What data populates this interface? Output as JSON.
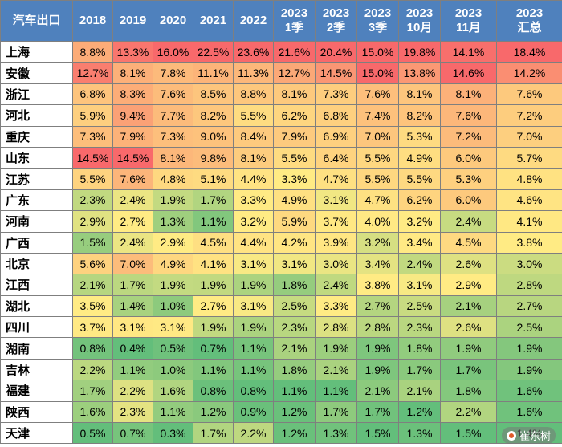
{
  "chart_data": {
    "type": "heatmap",
    "corner_label": "汽车出口",
    "columns": [
      [
        "2018"
      ],
      [
        "2019"
      ],
      [
        "2020"
      ],
      [
        "2021"
      ],
      [
        "2022"
      ],
      [
        "2023",
        "1季"
      ],
      [
        "2023",
        "2季"
      ],
      [
        "2023",
        "3季"
      ],
      [
        "2023",
        "10月"
      ],
      [
        "2023",
        "11月"
      ],
      [
        "2023",
        "汇总"
      ]
    ],
    "rows": [
      {
        "name": "上海",
        "values": [
          8.8,
          13.3,
          16.0,
          22.5,
          23.6,
          21.6,
          20.4,
          15.0,
          19.8,
          14.1,
          18.4
        ]
      },
      {
        "name": "安徽",
        "values": [
          12.7,
          8.1,
          7.8,
          11.1,
          11.3,
          12.7,
          14.5,
          15.0,
          13.8,
          14.6,
          14.2
        ]
      },
      {
        "name": "浙江",
        "values": [
          6.8,
          8.3,
          7.6,
          8.5,
          8.8,
          8.1,
          7.3,
          7.6,
          8.1,
          8.1,
          7.6
        ]
      },
      {
        "name": "河北",
        "values": [
          5.9,
          9.4,
          7.7,
          8.2,
          5.5,
          6.2,
          6.8,
          7.4,
          8.2,
          7.6,
          7.2
        ]
      },
      {
        "name": "重庆",
        "values": [
          7.3,
          7.9,
          7.3,
          9.0,
          8.4,
          7.9,
          6.9,
          7.0,
          5.3,
          7.2,
          7.0
        ]
      },
      {
        "name": "山东",
        "values": [
          14.5,
          14.5,
          8.1,
          9.8,
          8.1,
          5.5,
          6.4,
          5.5,
          4.9,
          6.0,
          5.7
        ]
      },
      {
        "name": "江苏",
        "values": [
          5.5,
          7.6,
          4.8,
          5.1,
          4.4,
          3.3,
          4.7,
          5.5,
          5.5,
          5.3,
          4.8
        ]
      },
      {
        "name": "广东",
        "values": [
          2.3,
          2.4,
          1.9,
          1.7,
          3.3,
          4.9,
          3.1,
          4.7,
          6.2,
          6.0,
          4.6
        ]
      },
      {
        "name": "河南",
        "values": [
          2.9,
          2.7,
          1.3,
          1.1,
          3.2,
          5.9,
          3.7,
          4.0,
          3.2,
          2.4,
          4.1
        ]
      },
      {
        "name": "广西",
        "values": [
          1.5,
          2.4,
          2.9,
          4.5,
          4.4,
          4.2,
          3.9,
          3.2,
          3.4,
          4.5,
          3.8
        ]
      },
      {
        "name": "北京",
        "values": [
          5.6,
          7.0,
          4.9,
          4.1,
          3.1,
          3.1,
          3.0,
          3.4,
          2.4,
          2.6,
          3.0
        ]
      },
      {
        "name": "江西",
        "values": [
          2.1,
          1.7,
          1.9,
          1.9,
          1.9,
          1.8,
          2.4,
          3.8,
          3.1,
          2.9,
          2.8
        ]
      },
      {
        "name": "湖北",
        "values": [
          3.5,
          1.4,
          1.0,
          2.7,
          3.1,
          2.5,
          3.3,
          2.7,
          2.5,
          2.1,
          2.7
        ]
      },
      {
        "name": "四川",
        "values": [
          3.7,
          3.1,
          3.1,
          1.9,
          1.9,
          2.3,
          2.8,
          2.8,
          2.3,
          2.6,
          2.5
        ]
      },
      {
        "name": "湖南",
        "values": [
          0.8,
          0.4,
          0.5,
          0.7,
          1.1,
          2.1,
          1.9,
          1.9,
          1.8,
          1.9,
          1.9
        ]
      },
      {
        "name": "吉林",
        "values": [
          2.2,
          1.1,
          1.0,
          1.1,
          1.1,
          1.8,
          2.1,
          1.9,
          1.7,
          1.7,
          1.9
        ]
      },
      {
        "name": "福建",
        "values": [
          1.7,
          2.2,
          1.6,
          0.8,
          0.8,
          1.1,
          1.1,
          2.1,
          2.1,
          1.8,
          1.6
        ]
      },
      {
        "name": "陕西",
        "values": [
          1.6,
          2.3,
          1.1,
          1.2,
          0.9,
          1.2,
          1.7,
          1.7,
          1.2,
          2.2,
          1.6
        ]
      },
      {
        "name": "天津",
        "values": [
          0.5,
          0.7,
          0.3,
          1.7,
          2.2,
          1.2,
          1.3,
          1.5,
          1.3,
          1.5,
          1.4
        ]
      }
    ],
    "value_suffix": "%",
    "color_scale": {
      "mode": "per-column",
      "low": "#63be7b",
      "mid": "#ffeb84",
      "high": "#f8696b"
    },
    "header_bg": "#4f81bd"
  },
  "watermark": {
    "text": "崔东树"
  }
}
